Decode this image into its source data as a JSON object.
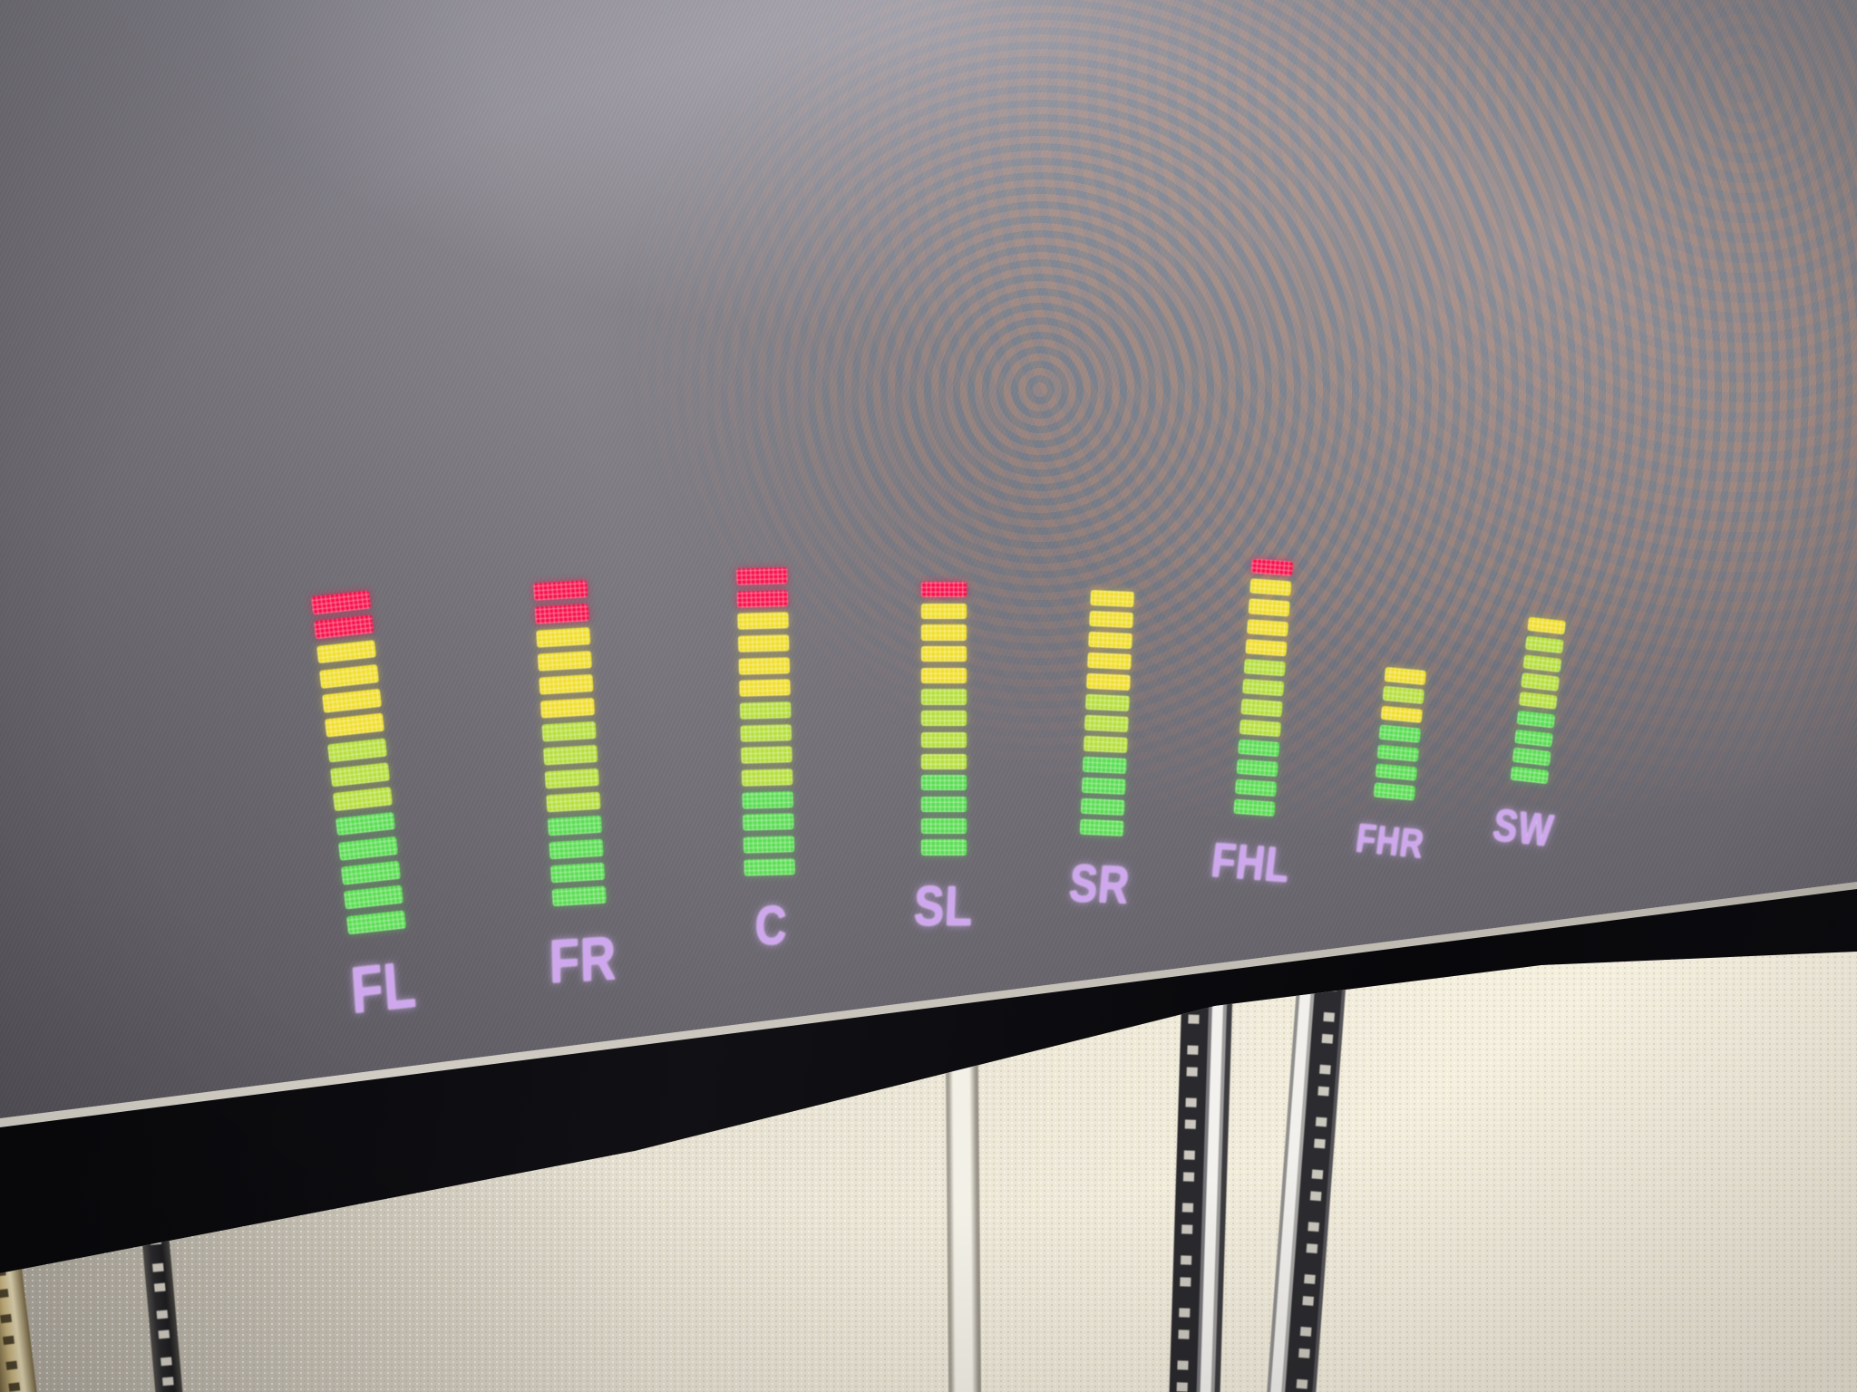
{
  "colors": {
    "led_red": "#e5164a",
    "led_yellow": "#eedd3d",
    "led_yellow_green": "#b8dc4a",
    "led_green": "#63d95c",
    "channel_label_text": "#cfa7ee",
    "screen_gray": "#83808a",
    "bezel_black": "#0b0b0e",
    "wall_white": "#ece6d6"
  },
  "chart_data": {
    "type": "bar",
    "title": "",
    "categories": [
      "FL",
      "FR",
      "C",
      "SL",
      "SR",
      "FHL",
      "FHR",
      "SW"
    ],
    "values": [
      14,
      14,
      14,
      13,
      12,
      13,
      7,
      9
    ],
    "values_unit": "lit LED segments",
    "xlabel": "",
    "ylabel": "",
    "ylim": [
      0,
      14
    ],
    "legend": "none",
    "grid": "off",
    "segment_colors_top_to_bottom": {
      "FL": [
        "red",
        "red",
        "yellow",
        "yellow",
        "yellow",
        "yellow",
        "yellow_green",
        "yellow_green",
        "yellow_green",
        "green",
        "green",
        "green",
        "green",
        "green"
      ],
      "FR": [
        "red",
        "red",
        "yellow",
        "yellow",
        "yellow",
        "yellow",
        "yellow_green",
        "yellow_green",
        "yellow_green",
        "yellow_green",
        "green",
        "green",
        "green",
        "green"
      ],
      "C": [
        "red",
        "red",
        "yellow",
        "yellow",
        "yellow",
        "yellow",
        "yellow_green",
        "yellow_green",
        "yellow_green",
        "yellow_green",
        "green",
        "green",
        "green",
        "green"
      ],
      "SL": [
        "red",
        "yellow",
        "yellow",
        "yellow",
        "yellow",
        "yellow_green",
        "yellow_green",
        "yellow_green",
        "yellow_green",
        "green",
        "green",
        "green",
        "green"
      ],
      "SR": [
        "yellow",
        "yellow",
        "yellow",
        "yellow",
        "yellow",
        "yellow_green",
        "yellow_green",
        "yellow_green",
        "green",
        "green",
        "green",
        "green"
      ],
      "FHL": [
        "red",
        "yellow",
        "yellow",
        "yellow",
        "yellow",
        "yellow_green",
        "yellow_green",
        "yellow_green",
        "yellow_green",
        "green",
        "green",
        "green",
        "green"
      ],
      "FHR": [
        "yellow",
        "yellow_green",
        "yellow",
        "green",
        "green",
        "green",
        "green"
      ],
      "SW": [
        "yellow",
        "yellow_green",
        "yellow_green",
        "yellow_green",
        "yellow_green",
        "green",
        "green",
        "green",
        "green"
      ]
    }
  }
}
